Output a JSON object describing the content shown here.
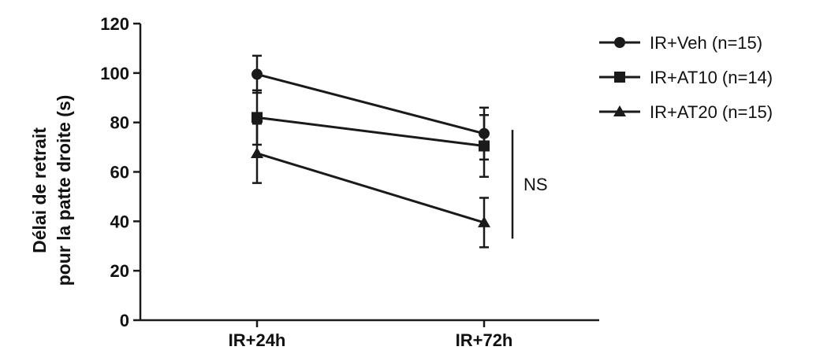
{
  "chart_data": {
    "type": "line",
    "title": "",
    "xlabel": "",
    "ylabel": [
      "Délai de retrait",
      "pour la patte droite (s)"
    ],
    "categories": [
      "IR+24h",
      "IR+72h"
    ],
    "ylim": [
      0,
      120
    ],
    "yticks": [
      0,
      20,
      40,
      60,
      80,
      100,
      120
    ],
    "grid": false,
    "legend_position": "top-right",
    "series": [
      {
        "name": "IR+Veh (n=15)",
        "marker": "circle",
        "values": [
          99.5,
          75.5
        ],
        "errors": [
          7.5,
          10.5
        ]
      },
      {
        "name": "IR+AT10 (n=14)",
        "marker": "square",
        "values": [
          82,
          70.5
        ],
        "errors": [
          11,
          12.5
        ]
      },
      {
        "name": "IR+AT20 (n=15)",
        "marker": "triangle",
        "values": [
          67.5,
          39.5
        ],
        "errors": [
          12,
          10
        ]
      }
    ],
    "annotations": [
      {
        "text": "NS",
        "type": "bracket",
        "category": "IR+72h",
        "y_range": [
          33,
          77
        ]
      }
    ],
    "colors": {
      "line": "#1a1a1a",
      "background": "#ffffff"
    }
  }
}
